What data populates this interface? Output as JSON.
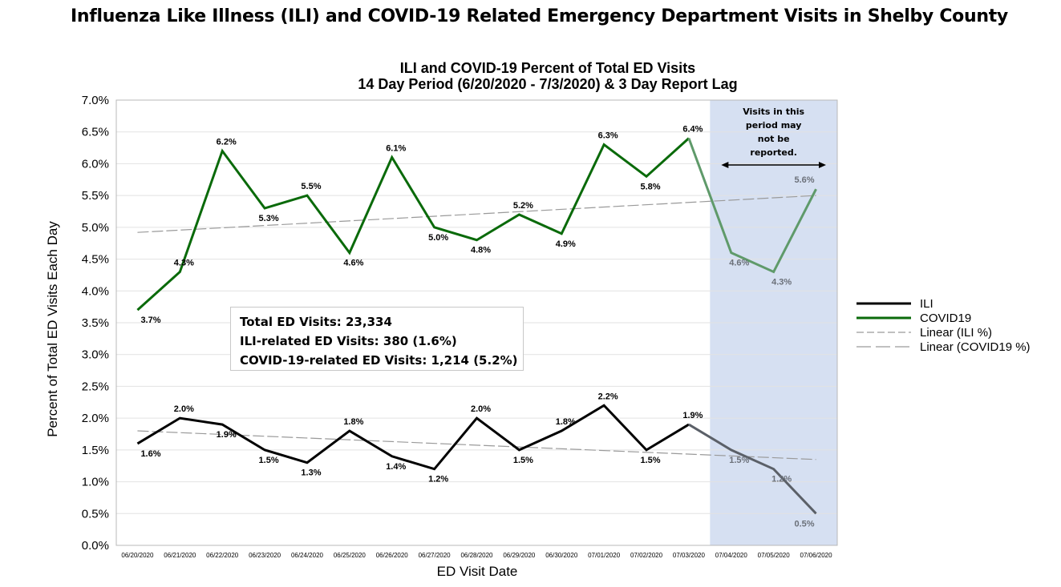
{
  "page_title": "Influenza Like Illness (ILI) and COVID-19 Related Emergency Department Visits in Shelby County",
  "stats_box": {
    "line1": "Total ED Visits: 23,334",
    "line2": "ILI-related ED Visits: 380 (1.6%)",
    "line3": "COVID-19-related ED Visits: 1,214 (5.2%)"
  },
  "shaded_note": [
    "Visits in this",
    "period may",
    "not be",
    "reported."
  ],
  "colors": {
    "ili": "#000000",
    "covid": "#0a6a0a",
    "ili_lag": "#5b6068",
    "covid_lag": "#5f9a6a",
    "trend": "#9a9a9a",
    "shade": "#d6e0f2",
    "lag_label": "#6b7079"
  },
  "chart_data": {
    "type": "line",
    "title": "ILI and COVID-19 Percent of Total ED Visits",
    "subtitle": "14 Day Period (6/20/2020 - 7/3/2020) & 3 Day Report Lag",
    "xlabel": "ED Visit Date",
    "ylabel": "Percent of Total ED Visits Each Day",
    "ylim": [
      0,
      7
    ],
    "y_ticks": [
      "0.0%",
      "0.5%",
      "1.0%",
      "1.5%",
      "2.0%",
      "2.5%",
      "3.0%",
      "3.5%",
      "4.0%",
      "4.5%",
      "5.0%",
      "5.5%",
      "6.0%",
      "6.5%",
      "7.0%"
    ],
    "x": [
      "06/20/2020",
      "06/21/2020",
      "06/22/2020",
      "06/23/2020",
      "06/24/2020",
      "06/25/2020",
      "06/26/2020",
      "06/27/2020",
      "06/28/2020",
      "06/29/2020",
      "06/30/2020",
      "07/01/2020",
      "07/02/2020",
      "07/03/2020",
      "07/04/2020",
      "07/05/2020",
      "07/06/2020"
    ],
    "shaded_range": [
      "07/04/2020",
      "07/06/2020"
    ],
    "series": [
      {
        "name": "ILI",
        "values": [
          1.6,
          2.0,
          1.9,
          1.5,
          1.3,
          1.8,
          1.4,
          1.2,
          2.0,
          1.5,
          1.8,
          2.2,
          1.5,
          1.9,
          1.5,
          1.2,
          0.5
        ],
        "labels": [
          "1.6%",
          "2.0%",
          "1.9%",
          "1.5%",
          "1.3%",
          "1.8%",
          "1.4%",
          "1.2%",
          "2.0%",
          "1.5%",
          "1.8%",
          "2.2%",
          "1.5%",
          "1.9%",
          "1.5%",
          "1.2%",
          "0.5%"
        ]
      },
      {
        "name": "COVID19",
        "values": [
          3.7,
          4.3,
          6.2,
          5.3,
          5.5,
          4.6,
          6.1,
          5.0,
          4.8,
          5.2,
          4.9,
          6.3,
          5.8,
          6.4,
          4.6,
          4.3,
          5.6
        ],
        "labels": [
          "3.7%",
          "4.3%",
          "6.2%",
          "5.3%",
          "5.5%",
          "4.6%",
          "6.1%",
          "5.0%",
          "4.8%",
          "5.2%",
          "4.9%",
          "6.3%",
          "5.8%",
          "6.4%",
          "4.6%",
          "4.3%",
          "5.6%"
        ]
      }
    ],
    "trendlines": [
      {
        "name": "Linear (ILI %)",
        "start": 1.8,
        "end": 1.35
      },
      {
        "name": "Linear (COVID19 %)",
        "start": 4.92,
        "end": 5.5
      }
    ],
    "legend": [
      "ILI",
      "COVID19",
      "Linear (ILI %)",
      "Linear (COVID19 %)"
    ],
    "legend_position": "right",
    "grid": true
  }
}
